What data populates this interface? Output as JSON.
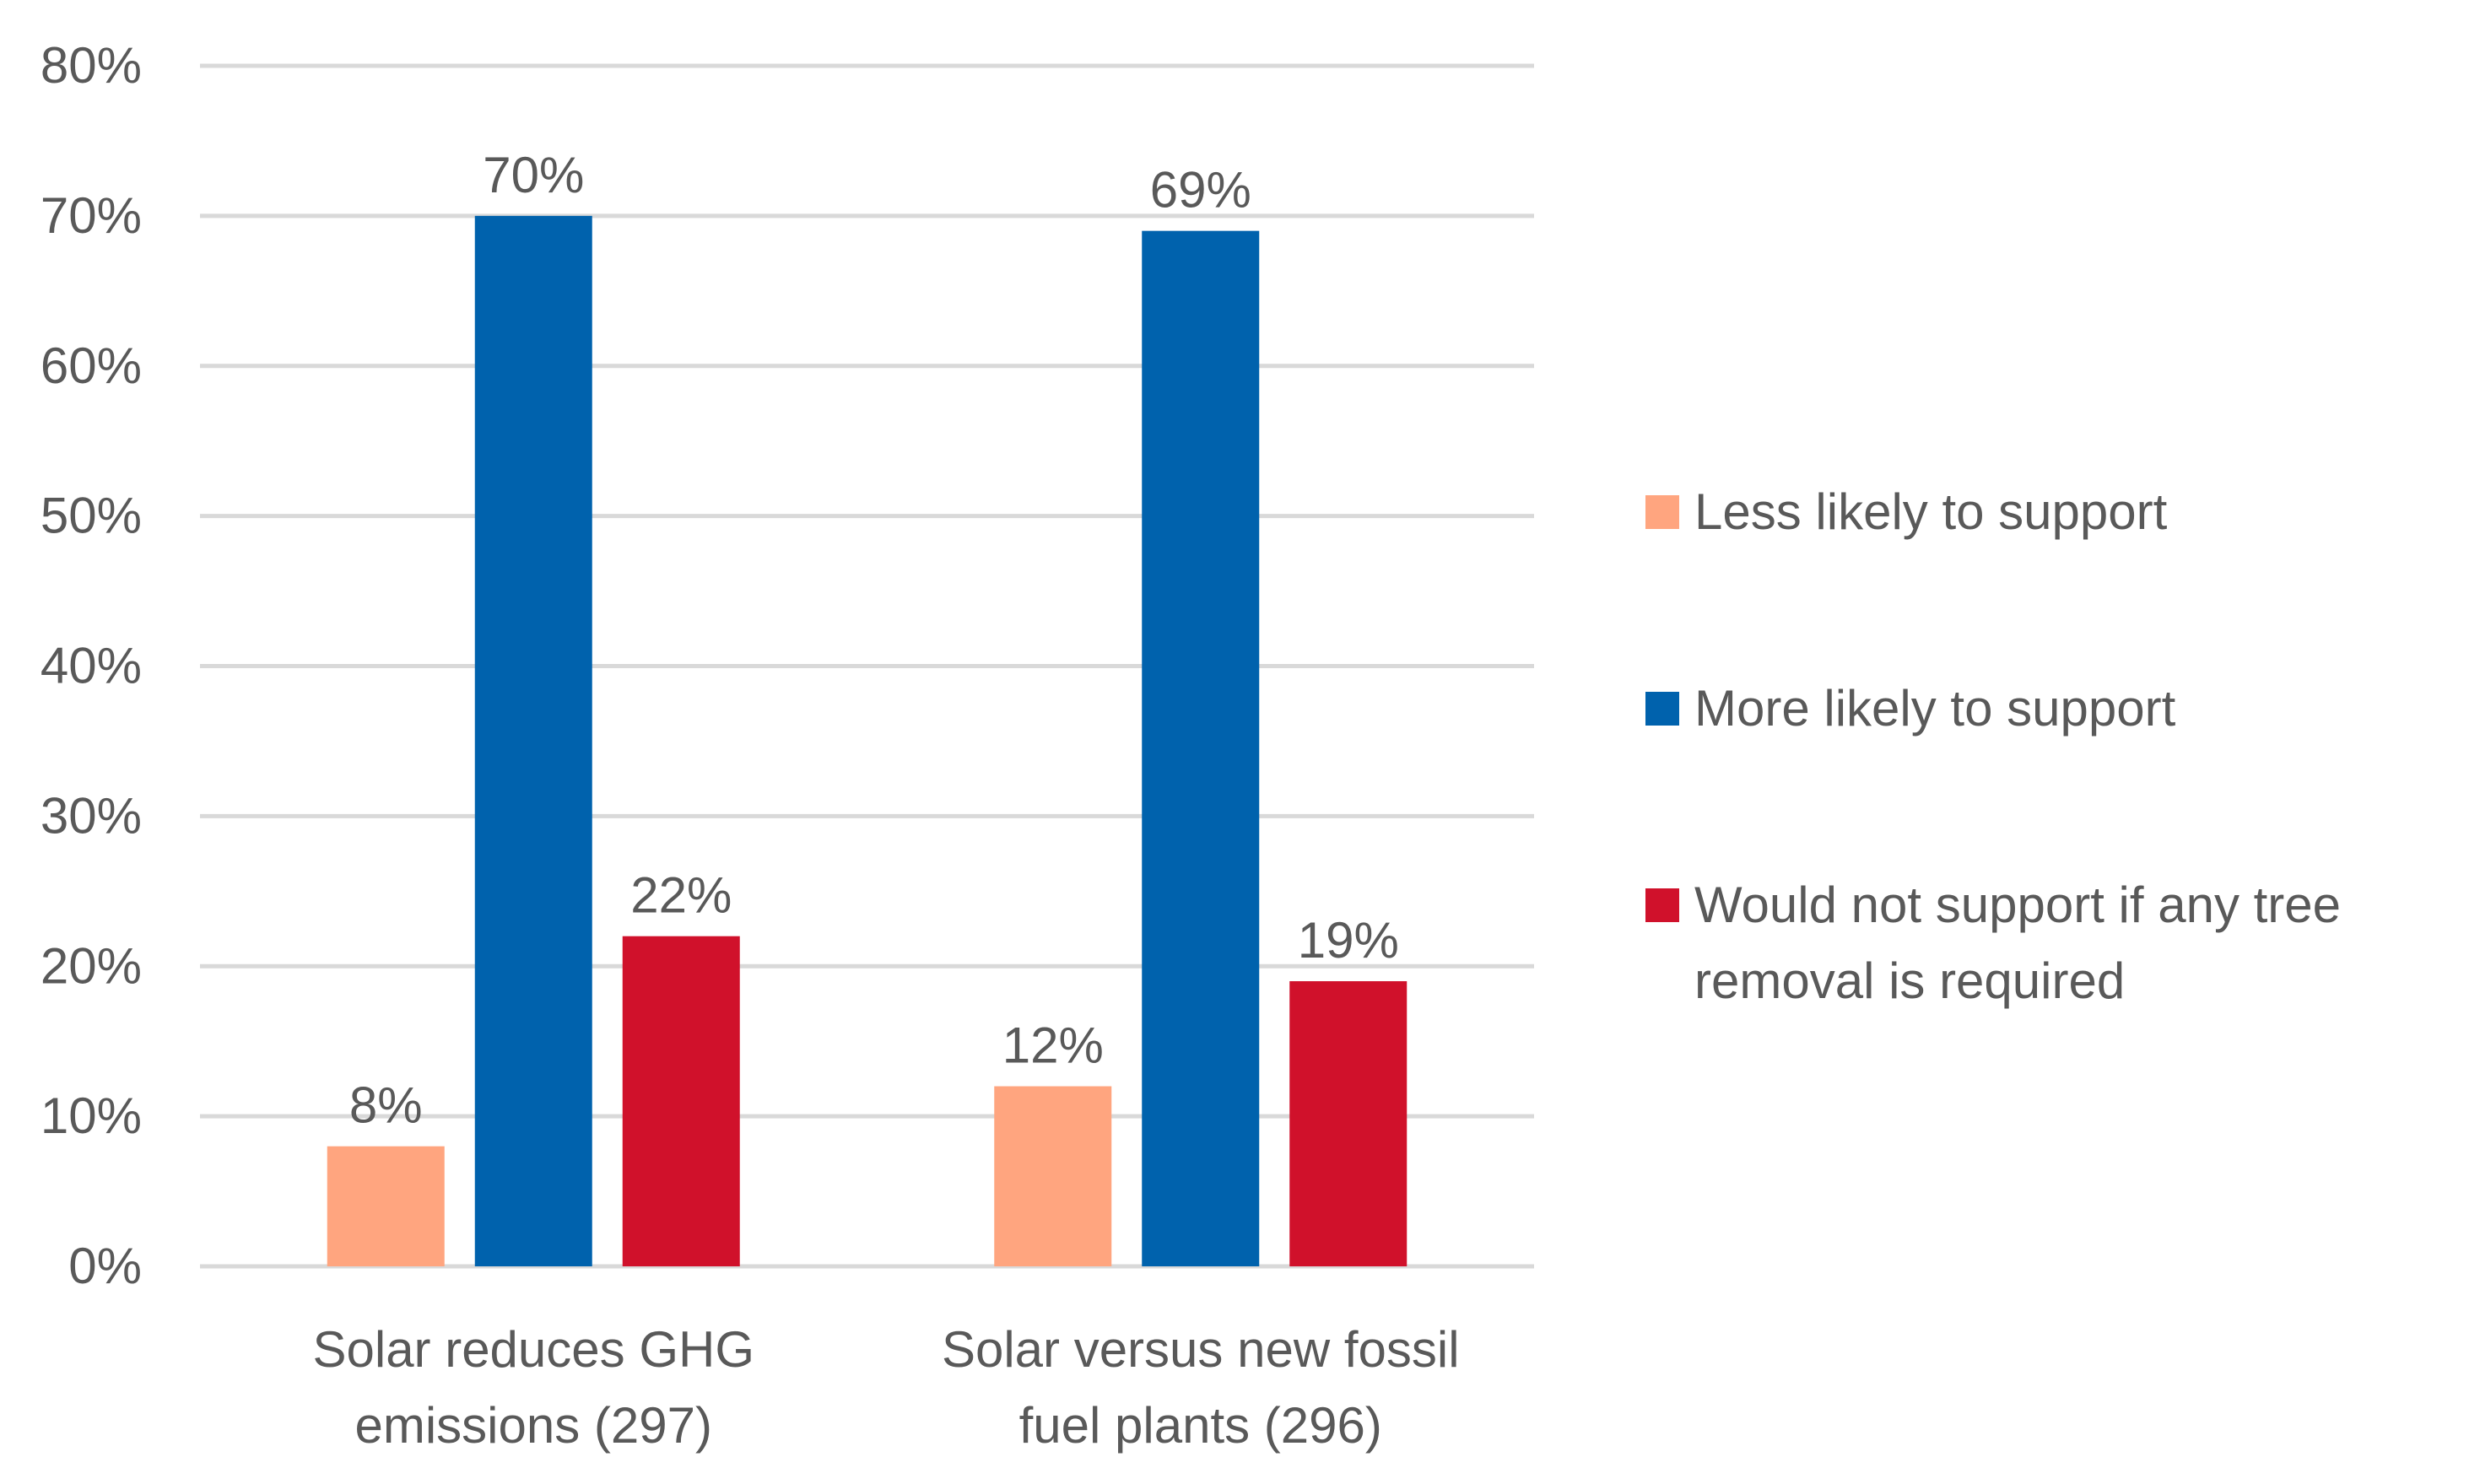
{
  "chart_data": {
    "type": "bar",
    "categories": [
      [
        "Solar reduces GHG",
        "emissions (297)"
      ],
      [
        "Solar versus new fossil",
        "fuel plants (296)"
      ]
    ],
    "series": [
      {
        "name": "Less likely to support",
        "color": "#FFA57F",
        "values": [
          8,
          12
        ],
        "labels": [
          "8%",
          "12%"
        ]
      },
      {
        "name": "More likely to support",
        "color": "#0062AD",
        "values": [
          70,
          69
        ],
        "labels": [
          "70%",
          "69%"
        ]
      },
      {
        "name": "Would not support if any tree removal is required",
        "name_lines": [
          "Would not support if any tree",
          "removal is required"
        ],
        "color": "#D0112B",
        "values": [
          22,
          19
        ],
        "labels": [
          "22%",
          "19%"
        ]
      }
    ],
    "ylim": [
      0,
      80
    ],
    "yticks": [
      "0%",
      "10%",
      "20%",
      "30%",
      "40%",
      "50%",
      "60%",
      "70%",
      "80%"
    ],
    "grid": true,
    "legend_position": "right",
    "gridline_color": "#D9D9D9"
  }
}
